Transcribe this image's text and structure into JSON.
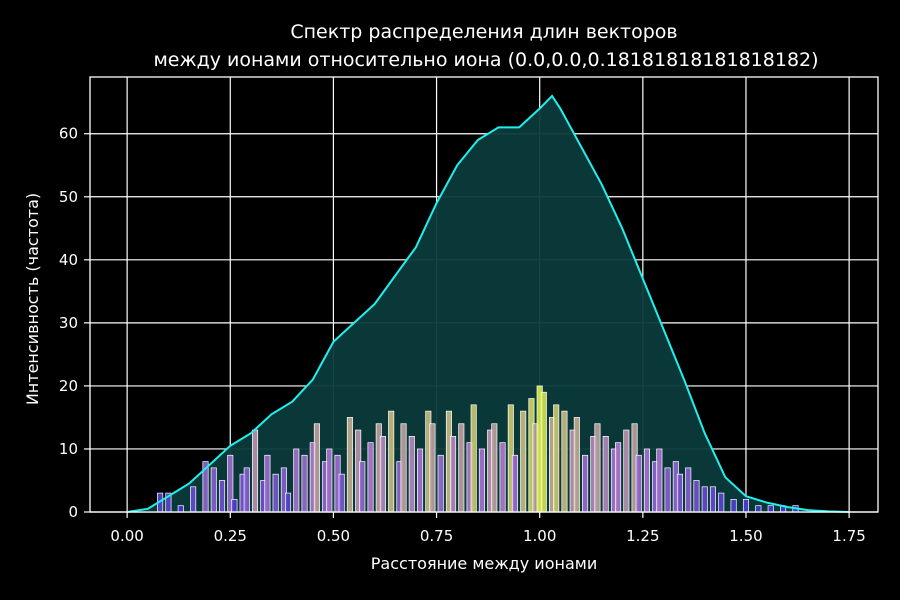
{
  "colors": {
    "background": "#000000",
    "grid": "#ffffff",
    "kde_line": "#1ef0ee",
    "kde_fill": "#0b3a3a",
    "bar_low": "#3a2fd0",
    "bar_mid": "#b07ad0",
    "bar_high": "#d8f040"
  },
  "chart_data": {
    "type": "histogram",
    "title_lines": [
      "Спектр распределения длин векторов",
      "между ионами относительно иона (0.0,0.0,0.18181818181818182)"
    ],
    "xlabel": "Расстояние между ионами",
    "ylabel": "Интенсивность (частота)",
    "xlim": [
      -0.09,
      1.82
    ],
    "ylim": [
      0,
      69
    ],
    "xticks": [
      0.0,
      0.25,
      0.5,
      0.75,
      1.0,
      1.25,
      1.5,
      1.75
    ],
    "xtick_labels": [
      "0.00",
      "0.25",
      "0.50",
      "0.75",
      "1.00",
      "1.25",
      "1.50",
      "1.75"
    ],
    "yticks": [
      0,
      10,
      20,
      30,
      40,
      50,
      60
    ],
    "ytick_labels": [
      "0",
      "10",
      "20",
      "30",
      "40",
      "50",
      "60"
    ],
    "grid": true,
    "kde": {
      "x": [
        0.0,
        0.05,
        0.1,
        0.15,
        0.2,
        0.25,
        0.3,
        0.35,
        0.4,
        0.45,
        0.5,
        0.55,
        0.6,
        0.65,
        0.7,
        0.75,
        0.8,
        0.85,
        0.9,
        0.95,
        1.0,
        1.03,
        1.05,
        1.1,
        1.15,
        1.2,
        1.25,
        1.3,
        1.35,
        1.4,
        1.45,
        1.5,
        1.55,
        1.6,
        1.65,
        1.7,
        1.75
      ],
      "y": [
        0,
        0.5,
        2.5,
        4.5,
        7.5,
        10.5,
        12.5,
        15.5,
        17.5,
        21,
        27,
        30,
        33,
        37.5,
        42,
        49,
        55,
        59,
        61,
        61,
        64,
        66,
        64,
        58,
        52,
        45,
        37,
        29,
        21,
        12.5,
        5.5,
        2.5,
        1.5,
        0.8,
        0.3,
        0.1,
        0
      ]
    },
    "bars": {
      "x": [
        0.08,
        0.1,
        0.13,
        0.16,
        0.19,
        0.21,
        0.23,
        0.25,
        0.26,
        0.28,
        0.29,
        0.31,
        0.33,
        0.34,
        0.36,
        0.38,
        0.39,
        0.41,
        0.43,
        0.45,
        0.46,
        0.48,
        0.49,
        0.51,
        0.52,
        0.54,
        0.56,
        0.57,
        0.59,
        0.61,
        0.62,
        0.64,
        0.66,
        0.67,
        0.69,
        0.71,
        0.73,
        0.74,
        0.76,
        0.78,
        0.79,
        0.81,
        0.83,
        0.84,
        0.86,
        0.88,
        0.89,
        0.91,
        0.93,
        0.94,
        0.96,
        0.98,
        0.99,
        1.0,
        1.01,
        1.03,
        1.04,
        1.06,
        1.08,
        1.09,
        1.11,
        1.13,
        1.14,
        1.16,
        1.18,
        1.19,
        1.21,
        1.23,
        1.24,
        1.26,
        1.28,
        1.29,
        1.31,
        1.33,
        1.34,
        1.36,
        1.38,
        1.4,
        1.42,
        1.44,
        1.47,
        1.5,
        1.53,
        1.56,
        1.59,
        1.62
      ],
      "values": [
        3,
        3,
        1,
        4,
        8,
        7,
        5,
        9,
        2,
        6,
        7,
        13,
        5,
        9,
        6,
        7,
        3,
        10,
        9,
        11,
        14,
        8,
        10,
        9,
        6,
        15,
        13,
        8,
        11,
        14,
        12,
        16,
        8,
        14,
        12,
        10,
        16,
        14,
        9,
        16,
        12,
        14,
        11,
        17,
        10,
        13,
        14,
        11,
        17,
        9,
        16,
        18,
        14,
        20,
        19,
        15,
        17,
        16,
        13,
        15,
        9,
        12,
        14,
        12,
        10,
        11,
        13,
        14,
        9,
        10,
        8,
        10,
        7,
        8,
        6,
        7,
        5,
        4,
        4,
        3,
        2,
        2,
        1,
        1,
        1,
        1
      ]
    }
  }
}
